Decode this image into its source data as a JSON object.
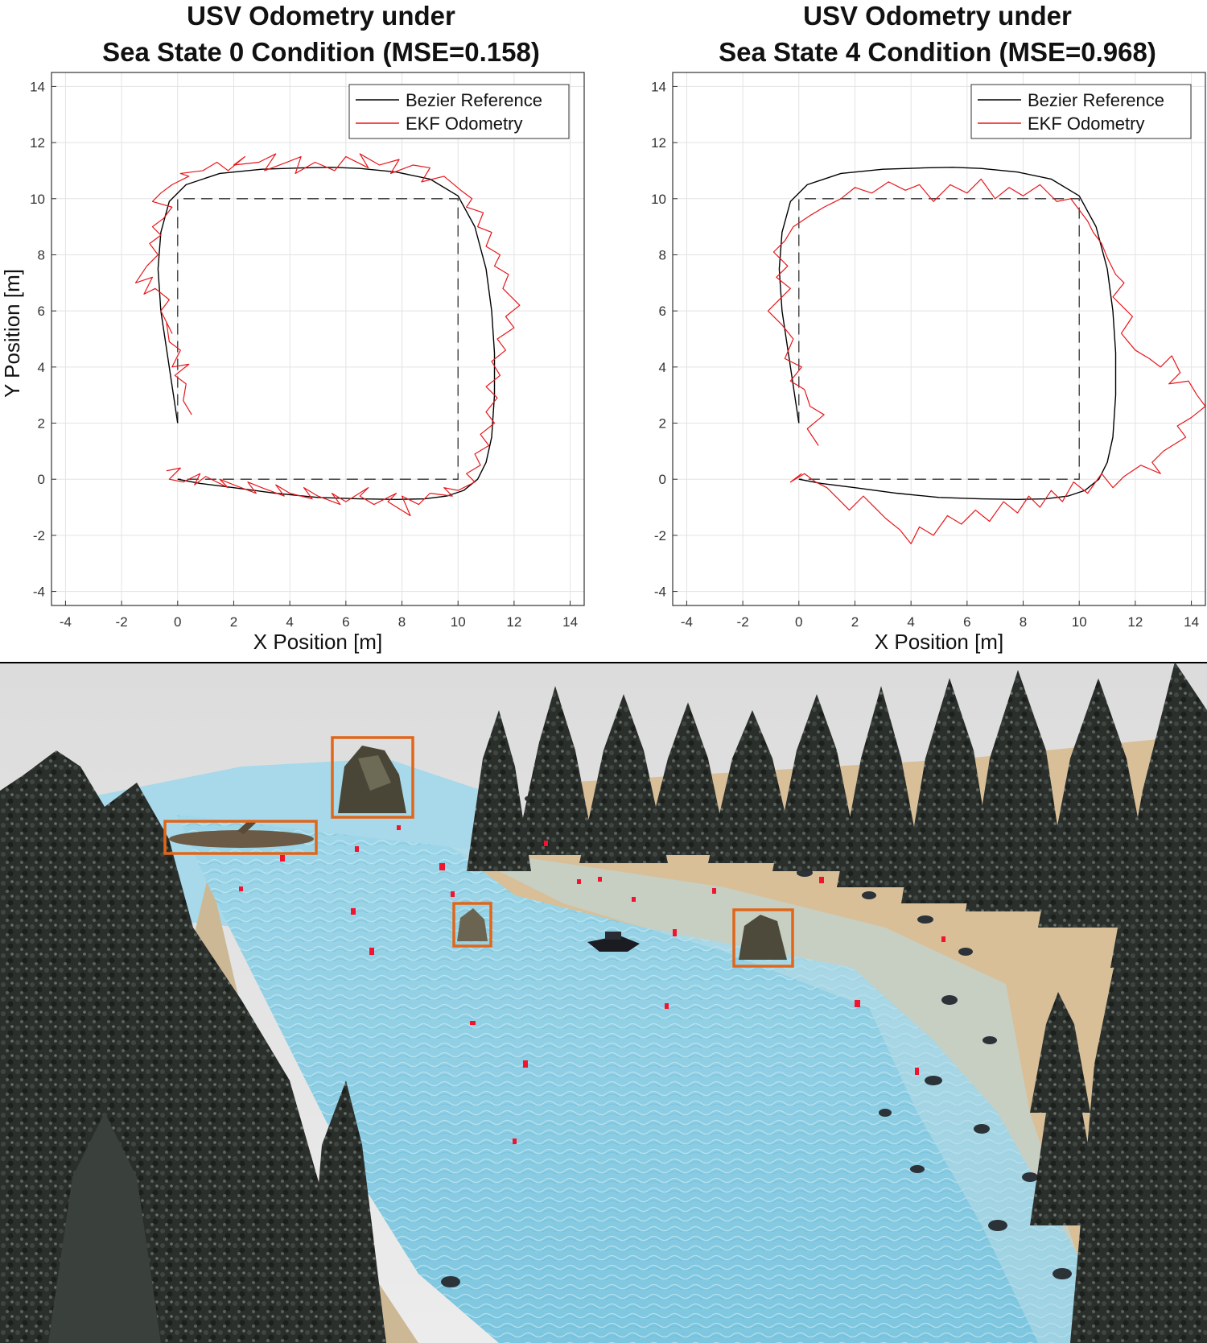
{
  "chart_data": [
    {
      "type": "line",
      "title": "USV Odometry under",
      "subtitle": "Sea State 0 Condition (MSE=0.158)",
      "xlabel": "X Position [m]",
      "ylabel": "Y Position [m]",
      "xlim": [
        -4.5,
        14.5
      ],
      "ylim": [
        -4.5,
        14.5
      ],
      "xticks": [
        -4,
        -2,
        0,
        2,
        4,
        6,
        8,
        10,
        12,
        14
      ],
      "yticks": [
        -4,
        -2,
        0,
        2,
        4,
        6,
        8,
        10,
        12,
        14
      ],
      "grid": true,
      "legend_position": "top-right",
      "series": [
        {
          "name": "Bezier Reference",
          "color": "#000000",
          "x": [
            0,
            -0.3,
            -0.6,
            -0.7,
            -0.6,
            -0.3,
            0.3,
            1.5,
            3.0,
            4.5,
            5.5,
            6.5,
            7.8,
            9.0,
            10.0,
            10.6,
            11.0,
            11.2,
            11.3,
            11.3,
            11.2,
            11.0,
            10.7,
            10.2,
            9.6,
            8.8,
            7.8,
            6.5,
            5.0,
            3.5,
            2.0,
            0.8,
            0
          ],
          "y": [
            2,
            4,
            6,
            7.5,
            8.8,
            9.9,
            10.5,
            10.9,
            11.05,
            11.1,
            11.12,
            11.08,
            10.95,
            10.7,
            10.1,
            9.0,
            7.5,
            6.0,
            4.5,
            3.0,
            1.5,
            0.6,
            0.0,
            -0.4,
            -0.6,
            -0.7,
            -0.72,
            -0.7,
            -0.65,
            -0.5,
            -0.3,
            -0.15,
            0
          ]
        },
        {
          "name": "EKF Odometry",
          "color": "#e8161b",
          "x": [
            0.5,
            0.2,
            0.3,
            -0.1,
            0.4,
            -0.2,
            0.1,
            -0.3,
            -0.4,
            -0.2,
            -0.6,
            -0.3,
            -0.8,
            -1.2,
            -0.9,
            -1.5,
            -1.1,
            -0.7,
            -1.0,
            -0.6,
            -0.9,
            -0.5,
            -0.2,
            -0.9,
            -0.6,
            -0.2,
            0.4,
            0.1,
            0.9,
            1.4,
            1.8,
            2.4,
            2.0,
            2.9,
            3.5,
            3.1,
            3.9,
            4.4,
            4.2,
            4.9,
            5.6,
            6.0,
            6.8,
            6.5,
            7.2,
            7.9,
            7.6,
            8.4,
            9.0,
            8.7,
            9.5,
            10.1,
            10.5,
            10.3,
            10.9,
            10.7,
            11.2,
            11.0,
            11.5,
            11.3,
            11.8,
            11.6,
            12.2,
            11.7,
            12.0,
            11.4,
            11.7,
            11.2,
            11.5,
            11.0,
            11.4,
            11.0,
            11.3,
            10.8,
            11.1,
            10.6,
            10.8,
            10.3,
            10.6,
            10.0,
            9.5,
            9.8,
            9.0,
            8.6,
            8.0,
            8.3,
            7.5,
            7.8,
            7.0,
            6.5,
            6.8,
            6.0,
            5.5,
            5.8,
            5.0,
            4.5,
            4.8,
            4.0,
            3.5,
            3.8,
            3.0,
            2.5,
            2.8,
            2.0,
            1.5,
            1.8,
            1.0,
            0.6,
            0.8,
            0.2,
            -0.3,
            0.1,
            -0.4
          ],
          "y": [
            2.3,
            2.8,
            3.4,
            3.7,
            4.1,
            4.0,
            4.6,
            4.9,
            5.6,
            5.2,
            6.0,
            6.4,
            6.8,
            6.6,
            7.2,
            7.0,
            7.6,
            8.0,
            8.4,
            8.7,
            9.0,
            9.3,
            9.7,
            9.9,
            10.2,
            10.5,
            10.8,
            10.9,
            11.0,
            11.3,
            11.0,
            11.5,
            11.2,
            11.3,
            11.6,
            11.0,
            11.3,
            11.5,
            10.9,
            11.3,
            11.0,
            11.5,
            11.1,
            11.6,
            11.2,
            11.4,
            10.9,
            11.2,
            11.1,
            10.6,
            10.8,
            10.3,
            10.0,
            9.7,
            9.5,
            9.0,
            8.8,
            8.3,
            8.0,
            7.6,
            7.3,
            6.8,
            6.2,
            5.8,
            5.4,
            5.0,
            4.6,
            4.2,
            3.7,
            3.3,
            2.9,
            2.4,
            2.0,
            1.6,
            1.2,
            0.9,
            0.5,
            0.2,
            -0.1,
            -0.4,
            -0.3,
            -0.6,
            -0.5,
            -0.9,
            -0.6,
            -1.3,
            -0.8,
            -0.5,
            -0.9,
            -0.6,
            -0.3,
            -0.8,
            -0.5,
            -0.9,
            -0.6,
            -0.3,
            -0.7,
            -0.5,
            -0.2,
            -0.6,
            -0.3,
            -0.1,
            -0.5,
            -0.2,
            0.0,
            -0.3,
            0.1,
            -0.2,
            0.2,
            -0.1,
            0.0,
            0.4,
            0.3
          ]
        }
      ],
      "reference_square": {
        "x": [
          0,
          0,
          10,
          10,
          0
        ],
        "y": [
          2,
          10,
          10,
          0,
          0
        ]
      }
    },
    {
      "type": "line",
      "title": "USV Odometry under",
      "subtitle": "Sea State 4 Condition (MSE=0.968)",
      "xlabel": "X Position [m]",
      "ylabel": "",
      "xlim": [
        -4.5,
        14.5
      ],
      "ylim": [
        -4.5,
        14.5
      ],
      "xticks": [
        -4,
        -2,
        0,
        2,
        4,
        6,
        8,
        10,
        12,
        14
      ],
      "yticks": [
        -4,
        -2,
        0,
        2,
        4,
        6,
        8,
        10,
        12,
        14
      ],
      "grid": true,
      "legend_position": "top-right",
      "series": [
        {
          "name": "Bezier Reference",
          "color": "#000000",
          "x": [
            0,
            -0.3,
            -0.6,
            -0.7,
            -0.6,
            -0.3,
            0.3,
            1.5,
            3.0,
            4.5,
            5.5,
            6.5,
            7.8,
            9.0,
            10.0,
            10.6,
            11.0,
            11.2,
            11.3,
            11.3,
            11.2,
            11.0,
            10.7,
            10.2,
            9.6,
            8.8,
            7.8,
            6.5,
            5.0,
            3.5,
            2.0,
            0.8,
            0
          ],
          "y": [
            2,
            4,
            6,
            7.5,
            8.8,
            9.9,
            10.5,
            10.9,
            11.05,
            11.1,
            11.12,
            11.08,
            10.95,
            10.7,
            10.1,
            9.0,
            7.5,
            6.0,
            4.5,
            3.0,
            1.5,
            0.6,
            0.0,
            -0.4,
            -0.6,
            -0.7,
            -0.72,
            -0.7,
            -0.65,
            -0.5,
            -0.3,
            -0.15,
            0
          ]
        },
        {
          "name": "EKF Odometry",
          "color": "#e8161b",
          "x": [
            0.7,
            0.3,
            0.9,
            0.4,
            0.2,
            -0.3,
            0.1,
            -0.5,
            -0.2,
            -0.6,
            -1.1,
            -0.7,
            -0.3,
            -0.8,
            -0.4,
            -0.9,
            -0.5,
            -0.2,
            0.4,
            0.9,
            1.5,
            2.0,
            2.6,
            3.2,
            3.8,
            4.3,
            4.8,
            5.4,
            6.0,
            6.5,
            7.0,
            7.5,
            8.0,
            8.6,
            9.2,
            9.7,
            10.0,
            10.3,
            10.5,
            10.8,
            11.0,
            11.3,
            11.6,
            11.2,
            11.9,
            11.5,
            12.0,
            12.5,
            12.9,
            13.3,
            13.6,
            13.2,
            13.9,
            14.2,
            14.5,
            14.0,
            13.5,
            13.8,
            13.0,
            12.6,
            12.9,
            12.2,
            11.6,
            11.2,
            10.8,
            10.3,
            9.8,
            9.4,
            9.0,
            8.6,
            8.2,
            7.8,
            7.3,
            6.8,
            6.3,
            5.8,
            5.3,
            4.8,
            4.3,
            4.0,
            3.6,
            3.1,
            2.7,
            2.3,
            1.8,
            1.4,
            1.0,
            0.6,
            0.2,
            -0.3,
            0.1
          ],
          "y": [
            1.2,
            1.8,
            2.3,
            2.6,
            3.2,
            3.5,
            4.0,
            4.3,
            5.0,
            5.5,
            6.0,
            6.4,
            6.8,
            7.2,
            7.6,
            8.1,
            8.5,
            9.0,
            9.4,
            9.7,
            10.0,
            10.4,
            10.2,
            10.6,
            10.3,
            10.5,
            9.9,
            10.5,
            10.2,
            10.7,
            10.0,
            10.4,
            10.1,
            10.5,
            9.9,
            10.0,
            9.6,
            9.2,
            8.8,
            8.4,
            7.9,
            7.3,
            7.0,
            6.5,
            5.8,
            5.2,
            4.6,
            4.3,
            4.0,
            4.4,
            3.8,
            3.4,
            3.5,
            3.0,
            2.6,
            2.2,
            1.9,
            1.5,
            1.0,
            0.6,
            0.2,
            0.5,
            0.1,
            -0.3,
            0.2,
            -0.5,
            -0.1,
            -0.8,
            -0.4,
            -1.0,
            -0.6,
            -1.2,
            -0.8,
            -1.5,
            -1.1,
            -1.6,
            -1.3,
            -2.0,
            -1.7,
            -2.3,
            -1.8,
            -1.4,
            -1.0,
            -0.6,
            -1.1,
            -0.7,
            -0.3,
            -0.1,
            0.2,
            -0.1,
            0.2
          ]
        }
      ],
      "reference_square": {
        "x": [
          0,
          0,
          10,
          10,
          0
        ],
        "y": [
          2,
          10,
          10,
          0,
          0
        ]
      }
    }
  ],
  "scene": {
    "colors": {
      "water": "#8fd0e6",
      "deep_water": "#6fbad6",
      "sand": "#d9c09a",
      "tree": "#262b27",
      "box": "#e0661a",
      "marker": "#f2142e",
      "sky": "#e6e6e6"
    }
  }
}
